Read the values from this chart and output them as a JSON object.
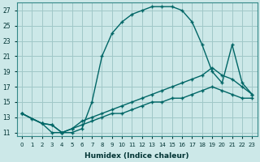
{
  "xlabel": "Humidex (Indice chaleur)",
  "bg_color": "#cce8e8",
  "grid_color": "#a0c8c8",
  "line_color": "#006666",
  "xlim": [
    -0.5,
    23.5
  ],
  "ylim": [
    10.5,
    28.0
  ],
  "xticks": [
    0,
    1,
    2,
    3,
    4,
    5,
    6,
    7,
    8,
    9,
    10,
    11,
    12,
    13,
    14,
    15,
    16,
    17,
    18,
    19,
    20,
    21,
    22,
    23
  ],
  "yticks": [
    11,
    13,
    15,
    17,
    19,
    21,
    23,
    25,
    27
  ],
  "curve1_x": [
    0,
    1,
    2,
    3,
    4,
    5,
    6,
    7,
    8,
    9,
    10,
    11,
    12,
    13,
    14,
    15,
    16,
    17,
    18,
    19,
    20,
    21,
    22,
    23
  ],
  "curve1_y": [
    13.5,
    12.8,
    12.2,
    11.0,
    11.0,
    11.0,
    11.5,
    15.0,
    21.0,
    24.0,
    25.5,
    26.5,
    27.0,
    27.5,
    27.5,
    27.5,
    27.0,
    25.5,
    22.5,
    19.0,
    17.5,
    22.5,
    17.5,
    16.0
  ],
  "curve2_x": [
    0,
    2,
    3,
    4,
    5,
    6,
    7,
    8,
    9,
    10,
    11,
    12,
    13,
    14,
    15,
    16,
    17,
    18,
    19,
    20,
    21,
    22,
    23
  ],
  "curve2_y": [
    13.5,
    12.2,
    12.0,
    11.0,
    11.5,
    12.5,
    13.0,
    13.5,
    14.0,
    14.5,
    15.0,
    15.5,
    16.0,
    16.5,
    17.0,
    17.5,
    18.0,
    18.5,
    19.5,
    18.5,
    18.0,
    17.0,
    16.0
  ],
  "curve3_x": [
    0,
    2,
    3,
    4,
    5,
    6,
    7,
    8,
    9,
    10,
    11,
    12,
    13,
    14,
    15,
    16,
    17,
    18,
    19,
    20,
    21,
    22,
    23
  ],
  "curve3_y": [
    13.5,
    12.2,
    12.0,
    11.0,
    11.5,
    12.0,
    12.5,
    13.0,
    13.5,
    13.5,
    14.0,
    14.5,
    15.0,
    15.0,
    15.5,
    15.5,
    16.0,
    16.5,
    17.0,
    16.5,
    16.0,
    15.5,
    15.5
  ]
}
